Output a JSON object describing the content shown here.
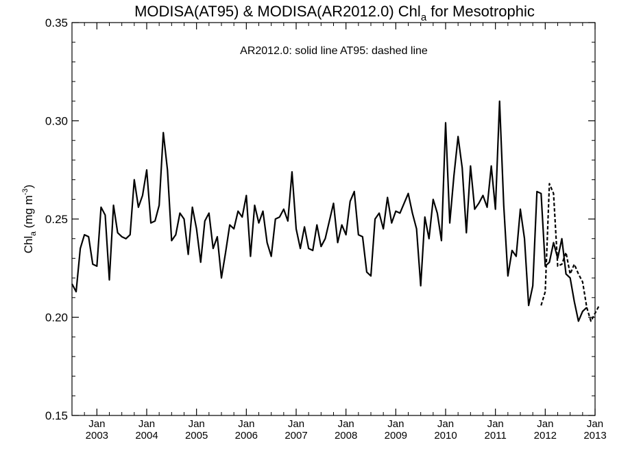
{
  "chart_data": {
    "type": "line",
    "title_prefix": "MODISA(AT95) & MODISA(AR2012.0)  Chl",
    "title_sub": "a",
    "title_suffix": " for Mesotrophic",
    "annotation": "AR2012.0: solid line   AT95: dashed line",
    "ylabel_prefix": "Chl",
    "ylabel_sub": "a",
    "ylabel_unit": " (mg m",
    "ylabel_sup": "-3",
    "ylabel_close": ")",
    "ylim": [
      0.15,
      0.35
    ],
    "y_ticks": [
      "0.15",
      "0.20",
      "0.25",
      "0.30",
      "0.35"
    ],
    "xlim": [
      "2002-07",
      "2013-01"
    ],
    "x_ticks": [
      {
        "month": "Jan",
        "year": "2003"
      },
      {
        "month": "Jan",
        "year": "2004"
      },
      {
        "month": "Jan",
        "year": "2005"
      },
      {
        "month": "Jan",
        "year": "2006"
      },
      {
        "month": "Jan",
        "year": "2007"
      },
      {
        "month": "Jan",
        "year": "2008"
      },
      {
        "month": "Jan",
        "year": "2009"
      },
      {
        "month": "Jan",
        "year": "2010"
      },
      {
        "month": "Jan",
        "year": "2011"
      },
      {
        "month": "Jan",
        "year": "2012"
      },
      {
        "month": "Jan",
        "year": "2013"
      }
    ],
    "series": [
      {
        "key": "AR2012.0",
        "style": "solid",
        "start": "2002-07",
        "values": [
          0.217,
          0.213,
          0.235,
          0.242,
          0.241,
          0.227,
          0.226,
          0.256,
          0.252,
          0.219,
          0.257,
          0.243,
          0.241,
          0.24,
          0.242,
          0.27,
          0.256,
          0.262,
          0.275,
          0.248,
          0.249,
          0.257,
          0.294,
          0.275,
          0.239,
          0.242,
          0.253,
          0.25,
          0.232,
          0.256,
          0.245,
          0.228,
          0.249,
          0.253,
          0.235,
          0.241,
          0.22,
          0.233,
          0.247,
          0.245,
          0.254,
          0.251,
          0.262,
          0.231,
          0.257,
          0.248,
          0.254,
          0.238,
          0.231,
          0.25,
          0.251,
          0.255,
          0.249,
          0.274,
          0.245,
          0.235,
          0.246,
          0.235,
          0.234,
          0.247,
          0.236,
          0.24,
          0.249,
          0.258,
          0.238,
          0.247,
          0.242,
          0.259,
          0.264,
          0.242,
          0.241,
          0.223,
          0.221,
          0.25,
          0.253,
          0.245,
          0.261,
          0.248,
          0.254,
          0.253,
          0.258,
          0.263,
          0.253,
          0.245,
          0.216,
          0.251,
          0.24,
          0.26,
          0.253,
          0.239,
          0.299,
          0.248,
          0.272,
          0.292,
          0.276,
          0.243,
          0.277,
          0.255,
          0.258,
          0.262,
          0.256,
          0.277,
          0.255,
          0.31,
          0.257,
          0.221,
          0.234,
          0.231,
          0.255,
          0.24,
          0.206,
          0.216,
          0.264,
          0.263,
          0.226,
          0.228,
          0.238,
          0.23,
          0.24,
          0.222,
          0.22,
          0.208,
          0.198,
          0.203,
          0.205
        ]
      },
      {
        "key": "AT95",
        "style": "dashed",
        "start": "2011-12",
        "values": [
          0.206,
          0.213,
          0.268,
          0.263,
          0.226,
          0.227,
          0.233,
          0.222,
          0.227,
          0.222,
          0.218,
          0.205,
          0.198,
          0.202,
          0.206
        ]
      }
    ]
  }
}
